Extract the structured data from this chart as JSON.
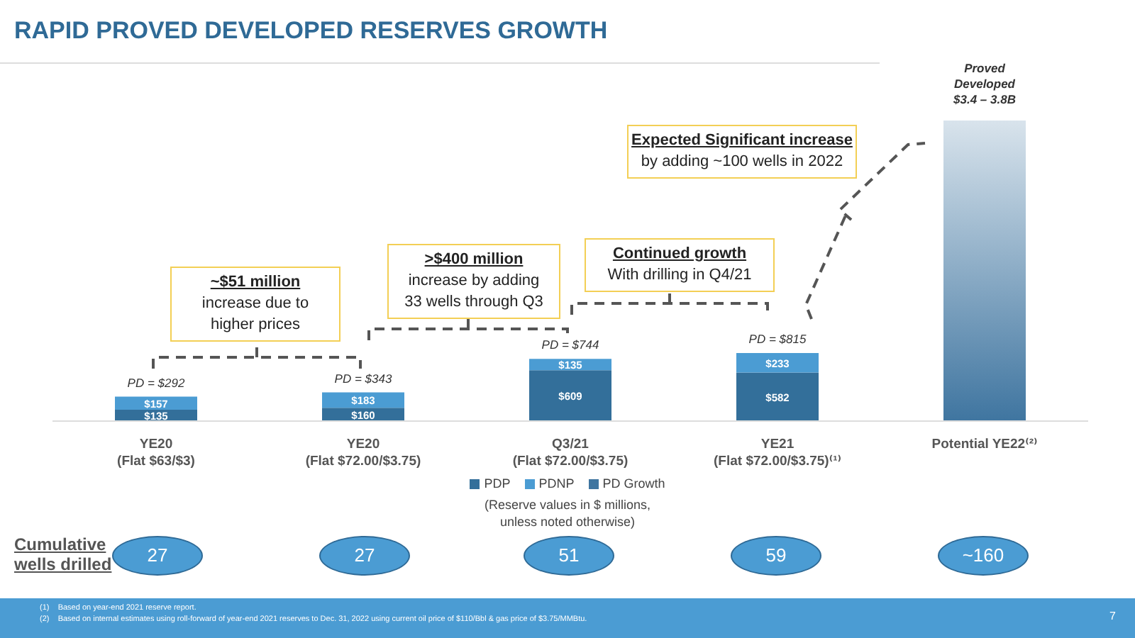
{
  "chart_data": {
    "type": "bar",
    "title": "RAPID PROVED DEVELOPED RESERVES GROWTH",
    "categories": [
      "YE20\n(Flat $63/$3)",
      "YE20\n(Flat $72.00/$3.75)",
      "Q3/21\n(Flat $72.00/$3.75)",
      "YE21\n(Flat $72.00/$3.75)⁽¹⁾",
      "Potential YE22⁽²⁾"
    ],
    "stacked": true,
    "series": [
      {
        "name": "PDP",
        "color": "#336f9a",
        "values": [
          135,
          160,
          609,
          582,
          null
        ],
        "value_labels": [
          "$135",
          "$160",
          "$609",
          "$582",
          null
        ]
      },
      {
        "name": "PDNP",
        "color": "#4b9cd3",
        "values": [
          157,
          183,
          135,
          233,
          null
        ],
        "value_labels": [
          "$157",
          "$183",
          "$135",
          "$233",
          null
        ]
      },
      {
        "name": "PD Growth",
        "color": "#3f75a0",
        "values": [
          null,
          null,
          null,
          null,
          3600
        ],
        "value_labels": [
          null,
          null,
          null,
          null,
          "Proved\nDeveloped\n$3.4 – 3.8B"
        ]
      }
    ],
    "totals": [
      "PD = $292",
      "PD = $343",
      "PD = $744",
      "PD = $815",
      null
    ],
    "legend": "bottom",
    "annotations": [
      "~$51 million\nincrease due to\nhigher prices",
      ">$400 million\nincrease by adding\n33 wells through Q3",
      "Continued growth\nWith drilling in Q4/21",
      "Expected Significant increase\nby adding ~100 wells in 2022",
      "(Reserve values in $ millions,\nunless noted otherwise)",
      "Cumulative\nwells drilled",
      "27",
      "27",
      "51",
      "59",
      "~160",
      "(1)    Based on year-end 2021 reserve report.",
      "(2)    Based on internal estimates using roll-forward of year-end 2021 reserves to Dec. 31, 2022 using current oil price of $110/Bbl & gas price of $3.75/MMBtu.",
      "7"
    ]
  }
}
